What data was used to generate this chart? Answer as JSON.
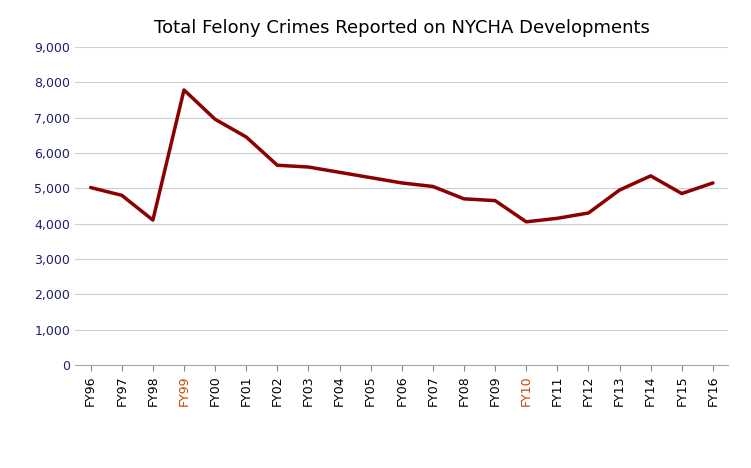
{
  "title": "Total Felony Crimes Reported on NYCHA Developments",
  "categories": [
    "FY96",
    "FY97",
    "FY98",
    "FY99",
    "FY00",
    "FY01",
    "FY02",
    "FY03",
    "FY04",
    "FY05",
    "FY06",
    "FY07",
    "FY08",
    "FY09",
    "FY10",
    "FY11",
    "FY12",
    "FY13",
    "FY14",
    "FY15",
    "FY16"
  ],
  "values": [
    5020,
    4800,
    4100,
    7780,
    6950,
    6450,
    5650,
    5600,
    5450,
    5300,
    5150,
    5050,
    4700,
    4650,
    4050,
    4150,
    4300,
    4950,
    5350,
    4850,
    5150
  ],
  "line_color": "#8B0000",
  "line_width": 2.5,
  "ylim": [
    0,
    9000
  ],
  "yticks": [
    0,
    1000,
    2000,
    3000,
    4000,
    5000,
    6000,
    7000,
    8000,
    9000
  ],
  "background_color": "#ffffff",
  "grid_color": "#d0d0d0",
  "title_fontsize": 13,
  "tick_fontsize": 9,
  "ytick_color": "#1f1f6e",
  "xtick_color_default": "#000000",
  "xtick_color_highlight": "#cc4400",
  "highlight_xticks": [
    "FY99",
    "FY10"
  ]
}
